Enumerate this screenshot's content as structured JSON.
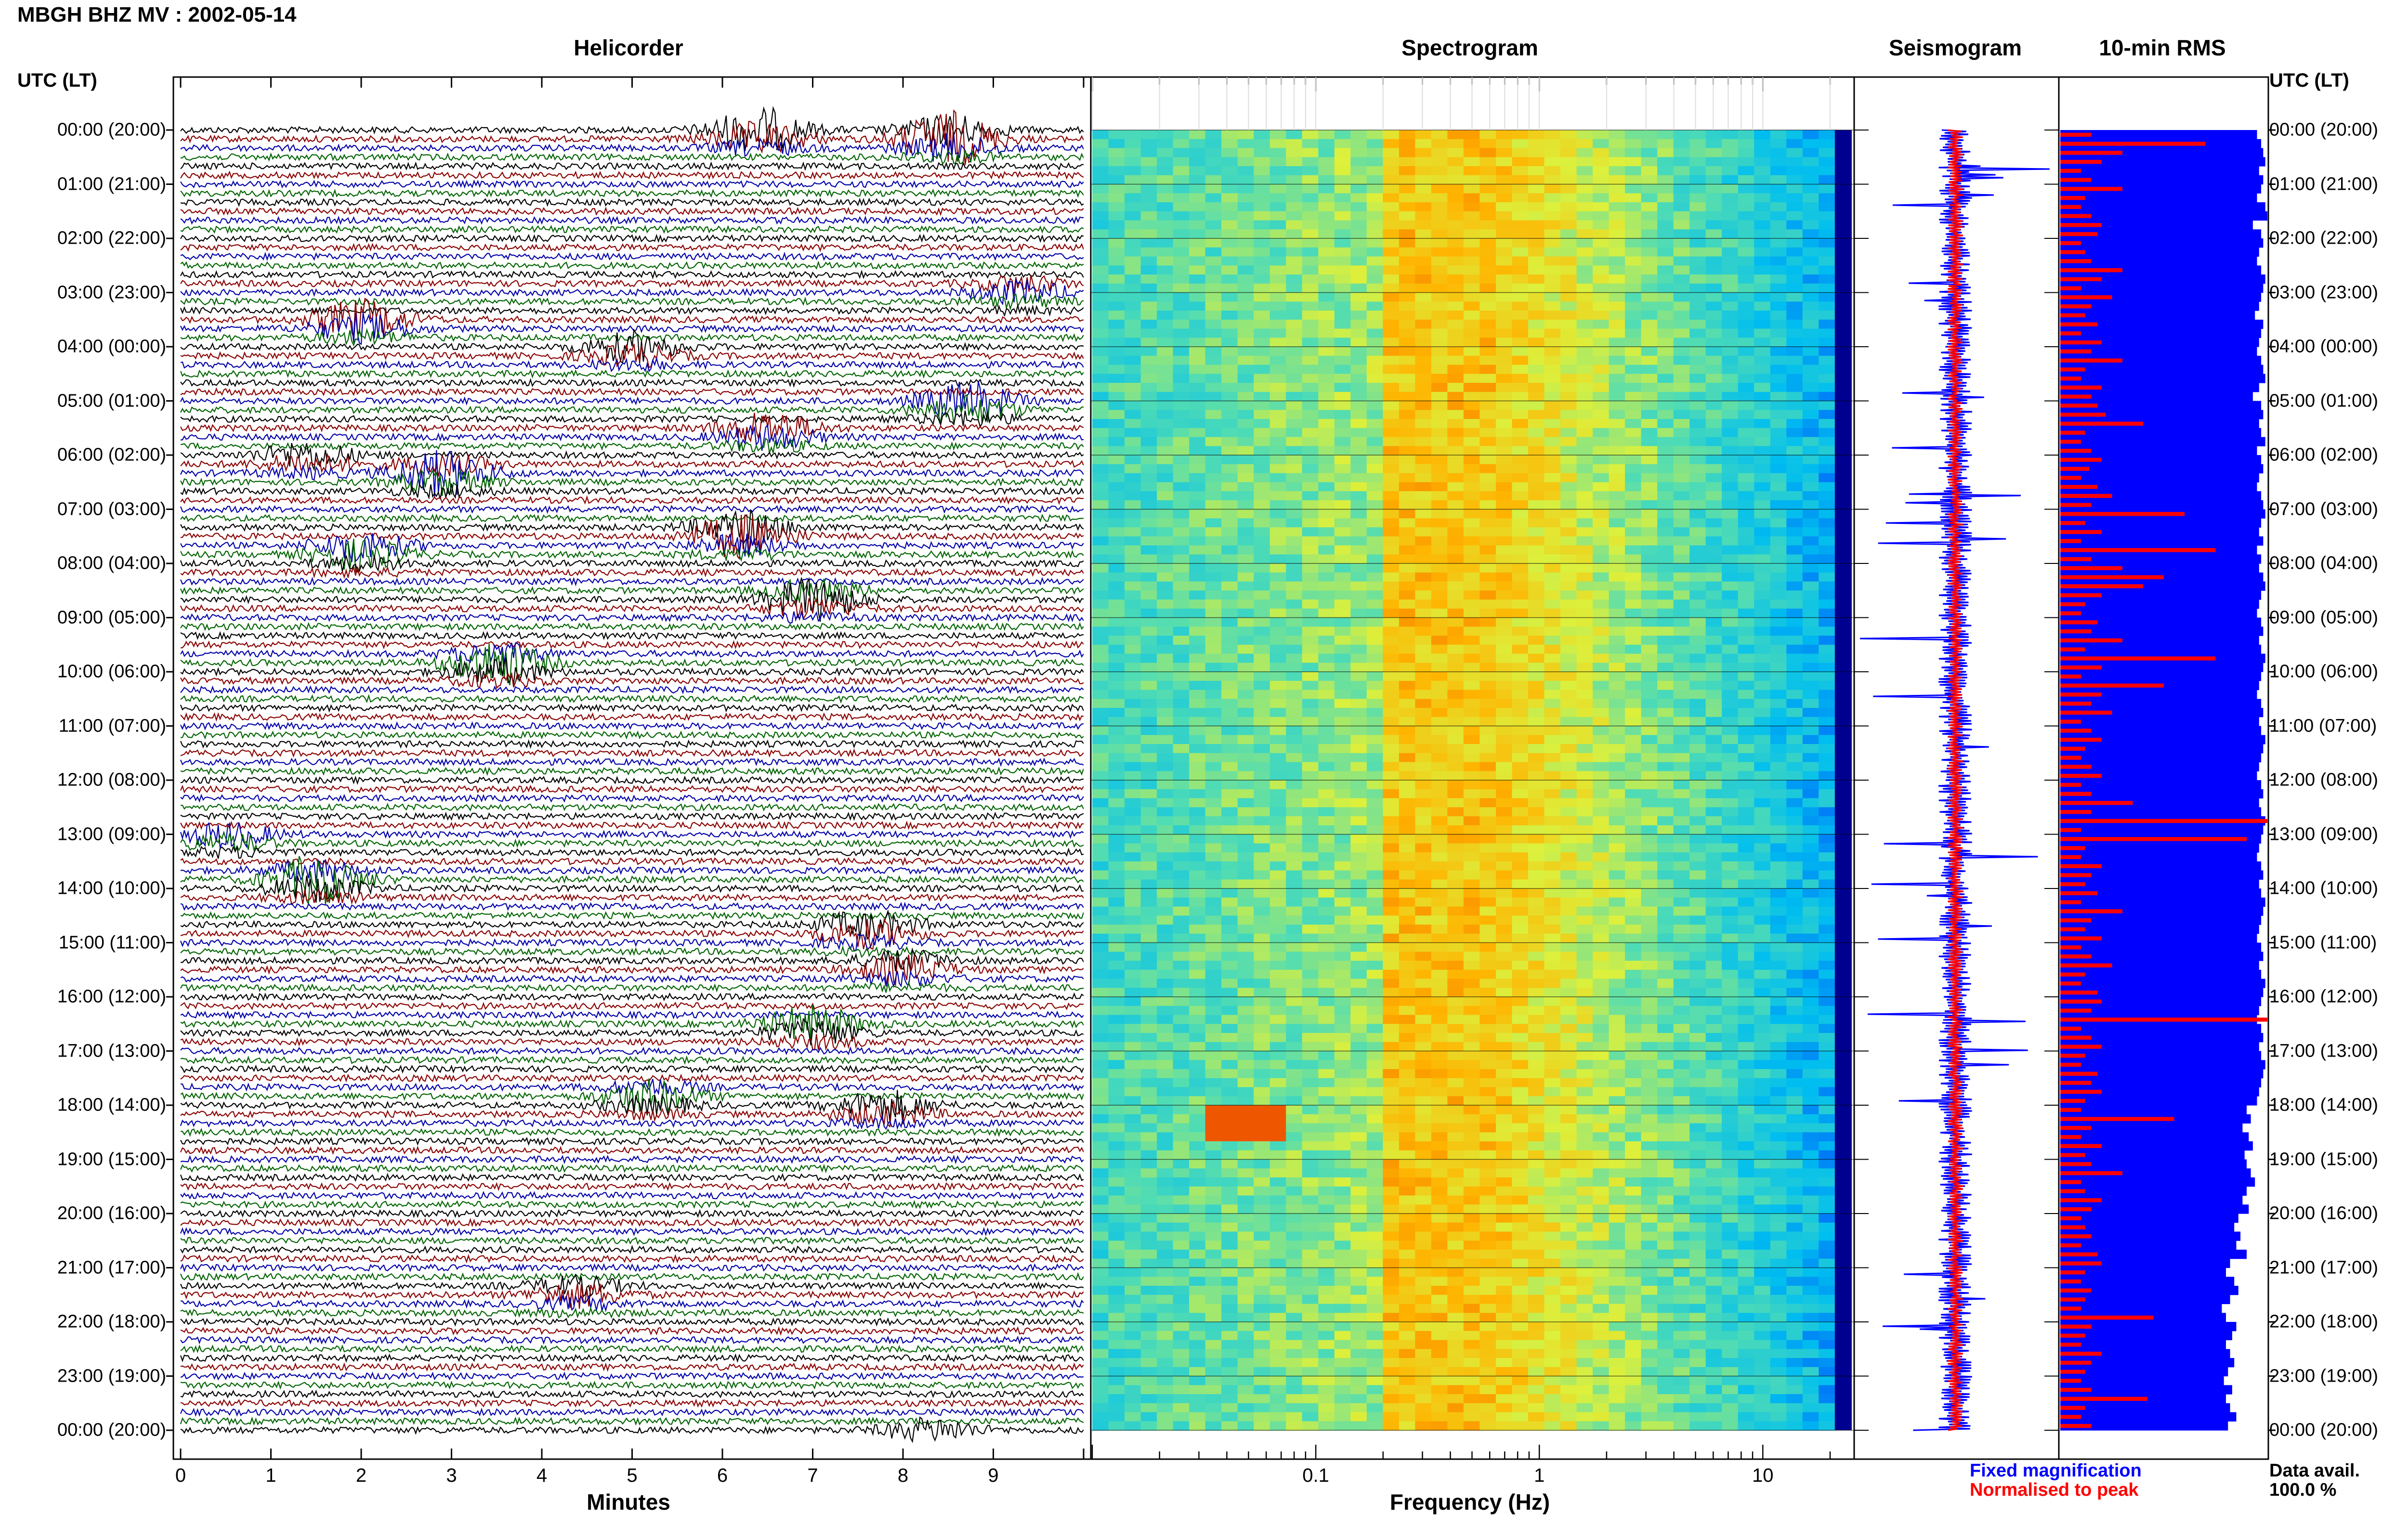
{
  "header": {
    "title": "MBGH BHZ MV : 2002-05-14"
  },
  "panels": {
    "helicorder": "Helicorder",
    "spectrogram": "Spectrogram",
    "seismogram": "Seismogram",
    "rms": "10-min RMS"
  },
  "axis_labels": {
    "utc_left": "UTC (LT)",
    "utc_right": "UTC (LT)",
    "minutes": "Minutes",
    "frequency": "Frequency (Hz)"
  },
  "legend": {
    "fixed": "Fixed magnification",
    "normalised": "Normalised to peak",
    "data_avail_label": "Data avail.",
    "data_avail_value": "100.0 %"
  },
  "colors": {
    "trace_colors": [
      "#000000",
      "#8b0000",
      "#0000aa",
      "#006400"
    ],
    "fixed": "#0000ff",
    "normalised": "#ff0000",
    "rms_fixed": "#0000ff",
    "rms_normalised": "#ff0000"
  },
  "chart_data": [
    {
      "type": "line",
      "panel": "helicorder",
      "xlabel": "Minutes",
      "xlim": [
        0,
        10
      ],
      "x_ticks": [
        "0",
        "1",
        "2",
        "3",
        "4",
        "5",
        "6",
        "7",
        "8",
        "9"
      ],
      "hour_labels": [
        "00:00 (20:00)",
        "01:00 (21:00)",
        "02:00 (22:00)",
        "03:00 (23:00)",
        "04:00 (00:00)",
        "05:00 (01:00)",
        "06:00 (02:00)",
        "07:00 (03:00)",
        "08:00 (04:00)",
        "09:00 (05:00)",
        "10:00 (06:00)",
        "11:00 (07:00)",
        "12:00 (08:00)",
        "13:00 (09:00)",
        "14:00 (10:00)",
        "15:00 (11:00)",
        "16:00 (12:00)",
        "17:00 (13:00)",
        "18:00 (14:00)",
        "19:00 (15:00)",
        "20:00 (16:00)",
        "21:00 (17:00)",
        "22:00 (18:00)",
        "23:00 (19:00)",
        "00:00 (20:00)"
      ],
      "rows_per_hour": 6,
      "events": [
        {
          "hour": 0.0,
          "minute": 6.4,
          "amplitude": 3.0
        },
        {
          "hour": 0.1,
          "minute": 8.5,
          "amplitude": 3.2
        },
        {
          "hour": 2.9,
          "minute": 9.3,
          "amplitude": 1.5
        },
        {
          "hour": 3.5,
          "minute": 2.0,
          "amplitude": 2.6
        },
        {
          "hour": 4.0,
          "minute": 5.0,
          "amplitude": 2.0
        },
        {
          "hour": 5.0,
          "minute": 8.7,
          "amplitude": 2.6
        },
        {
          "hour": 5.5,
          "minute": 6.5,
          "amplitude": 2.2
        },
        {
          "hour": 6.0,
          "minute": 1.4,
          "amplitude": 1.8
        },
        {
          "hour": 6.3,
          "minute": 2.9,
          "amplitude": 2.6
        },
        {
          "hour": 7.4,
          "minute": 6.2,
          "amplitude": 3.0
        },
        {
          "hour": 7.7,
          "minute": 2.0,
          "amplitude": 2.4
        },
        {
          "hour": 8.6,
          "minute": 7.0,
          "amplitude": 2.4
        },
        {
          "hour": 9.8,
          "minute": 3.5,
          "amplitude": 2.6
        },
        {
          "hour": 13.0,
          "minute": 0.5,
          "amplitude": 1.6
        },
        {
          "hour": 13.8,
          "minute": 1.5,
          "amplitude": 2.8
        },
        {
          "hour": 14.7,
          "minute": 7.6,
          "amplitude": 2.2
        },
        {
          "hour": 15.4,
          "minute": 8.0,
          "amplitude": 1.8
        },
        {
          "hour": 16.5,
          "minute": 7.0,
          "amplitude": 2.4
        },
        {
          "hour": 17.8,
          "minute": 5.2,
          "amplitude": 1.8
        },
        {
          "hour": 18.0,
          "minute": 7.8,
          "amplitude": 2.0
        },
        {
          "hour": 21.4,
          "minute": 4.4,
          "amplitude": 1.6
        },
        {
          "hour": 24.0,
          "minute": 8.3,
          "amplitude": 1.5
        }
      ]
    },
    {
      "type": "heatmap",
      "panel": "spectrogram",
      "xlabel": "Frequency (Hz)",
      "x_scale": "log",
      "xlim": [
        0.01,
        25
      ],
      "x_ticks": [
        "0.1",
        "1",
        "10"
      ],
      "peak_band_hz": [
        0.2,
        0.6
      ],
      "event_patch": {
        "hour": 18.3,
        "freq_range_hz": [
          0.03,
          0.07
        ]
      }
    },
    {
      "type": "line",
      "panel": "seismogram",
      "series": [
        {
          "name": "Fixed magnification",
          "color": "#0000ff"
        },
        {
          "name": "Normalised to peak",
          "color": "#ff0000"
        }
      ]
    },
    {
      "type": "bar",
      "panel": "rms",
      "interval_minutes": 10,
      "count": 144,
      "fixed_values": [
        0.95,
        0.97,
        0.98,
        0.99,
        0.96,
        0.98,
        0.97,
        0.95,
        0.99,
        1.0,
        0.93,
        0.97,
        0.98,
        0.96,
        0.95,
        0.97,
        0.99,
        0.98,
        0.97,
        0.96,
        0.94,
        0.98,
        0.97,
        0.96,
        0.95,
        0.97,
        0.98,
        0.99,
        0.96,
        0.93,
        0.97,
        0.98,
        0.96,
        0.97,
        0.99,
        0.95,
        0.97,
        0.98,
        0.96,
        0.95,
        0.97,
        0.98,
        0.99,
        0.97,
        0.96,
        0.98,
        0.95,
        0.97,
        0.96,
        0.98,
        0.99,
        0.97,
        0.96,
        0.95,
        0.97,
        0.98,
        0.96,
        0.97,
        0.99,
        0.98,
        0.97,
        0.96,
        0.95,
        0.97,
        0.98,
        0.96,
        0.97,
        0.99,
        0.98,
        0.97,
        0.96,
        0.95,
        0.97,
        0.98,
        0.96,
        0.97,
        0.99,
        0.98,
        0.97,
        0.96,
        0.95,
        0.97,
        0.98,
        0.96,
        0.97,
        0.99,
        0.98,
        0.97,
        0.96,
        0.95,
        0.97,
        0.98,
        0.96,
        0.97,
        0.99,
        0.98,
        0.97,
        0.96,
        0.95,
        0.97,
        0.98,
        0.96,
        0.97,
        0.99,
        0.98,
        0.97,
        0.96,
        0.95,
        0.9,
        0.92,
        0.88,
        0.91,
        0.93,
        0.89,
        0.9,
        0.92,
        0.94,
        0.9,
        0.88,
        0.91,
        0.86,
        0.84,
        0.87,
        0.85,
        0.9,
        0.82,
        0.8,
        0.84,
        0.86,
        0.82,
        0.78,
        0.8,
        0.85,
        0.83,
        0.8,
        0.82,
        0.84,
        0.81,
        0.79,
        0.83,
        0.8,
        0.82,
        0.85,
        0.81
      ],
      "normalised_values": [
        0.15,
        0.7,
        0.3,
        0.2,
        0.1,
        0.15,
        0.3,
        0.12,
        0.1,
        0.15,
        0.2,
        0.18,
        0.1,
        0.12,
        0.15,
        0.3,
        0.2,
        0.1,
        0.25,
        0.15,
        0.12,
        0.18,
        0.1,
        0.2,
        0.15,
        0.3,
        0.12,
        0.1,
        0.2,
        0.15,
        0.18,
        0.22,
        0.4,
        0.12,
        0.1,
        0.15,
        0.2,
        0.14,
        0.1,
        0.18,
        0.25,
        0.15,
        0.6,
        0.12,
        0.2,
        0.1,
        0.75,
        0.15,
        0.3,
        0.5,
        0.4,
        0.2,
        0.12,
        0.1,
        0.18,
        0.15,
        0.3,
        0.12,
        0.75,
        0.2,
        0.1,
        0.5,
        0.2,
        0.15,
        0.25,
        0.1,
        0.15,
        0.2,
        0.12,
        0.1,
        0.15,
        0.2,
        0.1,
        0.15,
        0.35,
        0.15,
        1.0,
        0.1,
        0.9,
        0.12,
        0.1,
        0.2,
        0.15,
        0.12,
        0.18,
        0.1,
        0.3,
        0.15,
        0.12,
        0.2,
        0.1,
        0.15,
        0.25,
        0.12,
        0.1,
        0.18,
        0.2,
        0.15,
        1.0,
        0.1,
        0.15,
        0.2,
        0.12,
        0.1,
        0.18,
        0.15,
        0.2,
        0.12,
        0.1,
        0.55,
        0.15,
        0.1,
        0.2,
        0.12,
        0.15,
        0.3,
        0.1,
        0.12,
        0.2,
        0.15,
        0.1,
        0.12,
        0.15,
        0.1,
        0.18,
        0.2,
        0.12,
        0.1,
        0.15,
        0.12,
        0.1,
        0.45,
        0.15,
        0.12,
        0.1,
        0.2,
        0.15,
        0.12,
        0.1,
        0.15,
        0.42,
        0.12,
        0.1,
        0.15
      ]
    }
  ]
}
